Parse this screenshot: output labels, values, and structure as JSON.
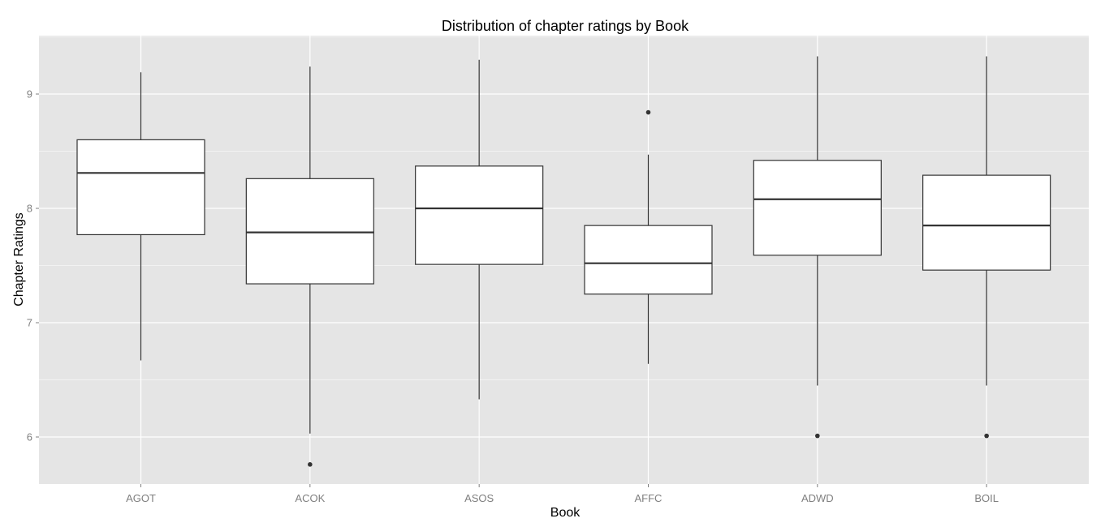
{
  "chart_data": {
    "type": "boxplot",
    "title": "Distribution of chapter ratings by Book",
    "xlabel": "Book",
    "ylabel": "Chapter Ratings",
    "categories": [
      "AGOT",
      "ACOK",
      "ASOS",
      "AFFC",
      "ADWD",
      "BOIL"
    ],
    "yticks": [
      6,
      7,
      8,
      9
    ],
    "ylim": [
      5.6,
      9.5
    ],
    "grid": true,
    "boxes": [
      {
        "name": "AGOT",
        "lower_whisker": 6.67,
        "q1": 7.77,
        "median": 8.31,
        "q3": 8.6,
        "upper_whisker": 9.19,
        "outliers": []
      },
      {
        "name": "ACOK",
        "lower_whisker": 6.03,
        "q1": 7.34,
        "median": 7.79,
        "q3": 8.26,
        "upper_whisker": 9.24,
        "outliers": [
          5.76
        ]
      },
      {
        "name": "ASOS",
        "lower_whisker": 6.33,
        "q1": 7.51,
        "median": 8.0,
        "q3": 8.37,
        "upper_whisker": 9.3,
        "outliers": []
      },
      {
        "name": "AFFC",
        "lower_whisker": 6.64,
        "q1": 7.25,
        "median": 7.52,
        "q3": 7.85,
        "upper_whisker": 8.47,
        "outliers": [
          8.84
        ]
      },
      {
        "name": "ADWD",
        "lower_whisker": 6.45,
        "q1": 7.59,
        "median": 8.08,
        "q3": 8.42,
        "upper_whisker": 9.33,
        "outliers": [
          6.01
        ]
      },
      {
        "name": "BOIL",
        "lower_whisker": 6.45,
        "q1": 7.46,
        "median": 7.85,
        "q3": 8.29,
        "upper_whisker": 9.33,
        "outliers": [
          6.01
        ]
      }
    ]
  },
  "colors": {
    "panel": "#e5e5e5",
    "grid_major": "#ffffff",
    "grid_minor": "#f2f2f2",
    "box_fill": "#ffffff",
    "box_stroke": "#333333",
    "tick_text": "#7f7f7f"
  }
}
